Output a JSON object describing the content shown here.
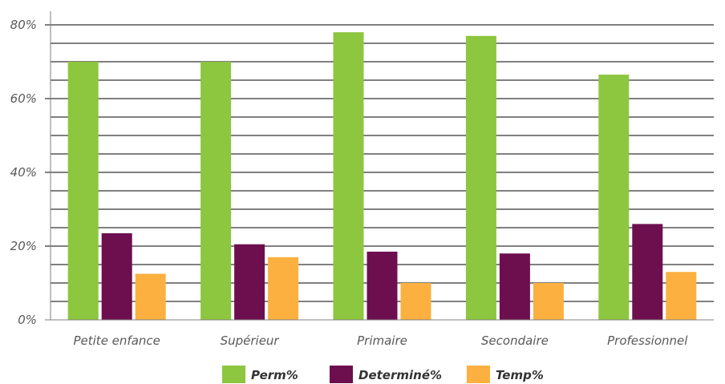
{
  "chart_data": {
    "type": "bar",
    "categories": [
      "Petite enfance",
      "Supérieur",
      "Primaire",
      "Secondaire",
      "Professionnel"
    ],
    "series": [
      {
        "name": "Perm%",
        "color": "#8dc63f",
        "values": [
          70,
          70,
          78,
          77,
          66.5
        ]
      },
      {
        "name": "Determiné%",
        "color": "#6d0f4e",
        "values": [
          23.5,
          20.5,
          18.5,
          18,
          26
        ]
      },
      {
        "name": "Temp%",
        "color": "#fbb040",
        "values": [
          12.5,
          17,
          10,
          10,
          13
        ]
      }
    ],
    "y_ticks": [
      "0%",
      "20%",
      "40%",
      "60%",
      "80%"
    ],
    "ylim": [
      0,
      80
    ],
    "grid": true,
    "legend_position": "bottom",
    "colors": {
      "grid": "#000000",
      "axis": "#7f7f7f",
      "tick_text": "#595959"
    }
  }
}
